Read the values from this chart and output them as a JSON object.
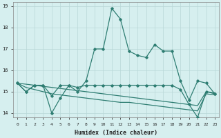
{
  "xlabel": "Humidex (Indice chaleur)",
  "x_values": [
    0,
    1,
    2,
    3,
    4,
    5,
    6,
    7,
    8,
    9,
    10,
    11,
    12,
    13,
    14,
    15,
    16,
    17,
    18,
    19,
    20,
    21,
    22,
    23
  ],
  "line1_y": [
    15.4,
    15.0,
    15.3,
    15.3,
    14.8,
    15.3,
    15.3,
    15.0,
    15.5,
    17.0,
    17.0,
    18.9,
    18.4,
    16.9,
    16.7,
    16.6,
    17.2,
    16.9,
    16.9,
    15.5,
    14.6,
    15.5,
    15.4,
    14.9
  ],
  "line2_y": [
    15.4,
    15.0,
    15.3,
    15.3,
    14.0,
    14.7,
    15.3,
    15.2,
    15.3,
    15.3,
    15.3,
    15.3,
    15.3,
    15.3,
    15.3,
    15.3,
    15.3,
    15.3,
    15.3,
    15.1,
    14.4,
    13.8,
    15.0,
    14.9
  ],
  "line3_y": [
    15.4,
    15.2,
    15.1,
    15.0,
    14.9,
    14.85,
    14.8,
    14.75,
    14.7,
    14.65,
    14.6,
    14.55,
    14.5,
    14.5,
    14.45,
    14.4,
    14.35,
    14.3,
    14.25,
    14.2,
    14.15,
    14.1,
    14.9,
    14.85
  ],
  "line4_y": [
    15.4,
    15.35,
    15.3,
    15.25,
    15.2,
    15.15,
    15.1,
    15.05,
    15.0,
    14.95,
    14.9,
    14.85,
    14.8,
    14.75,
    14.7,
    14.65,
    14.6,
    14.55,
    14.5,
    14.45,
    14.4,
    14.35,
    15.0,
    14.95
  ],
  "line_color": "#2e7d72",
  "bg_color": "#d6efef",
  "grid_color": "#b8d8d8",
  "ylim": [
    13.8,
    19.2
  ],
  "yticks": [
    14,
    15,
    16,
    17,
    18,
    19
  ],
  "xticks": [
    0,
    1,
    2,
    3,
    4,
    5,
    6,
    7,
    8,
    9,
    10,
    11,
    12,
    13,
    14,
    15,
    16,
    17,
    18,
    19,
    20,
    21,
    22,
    23
  ]
}
